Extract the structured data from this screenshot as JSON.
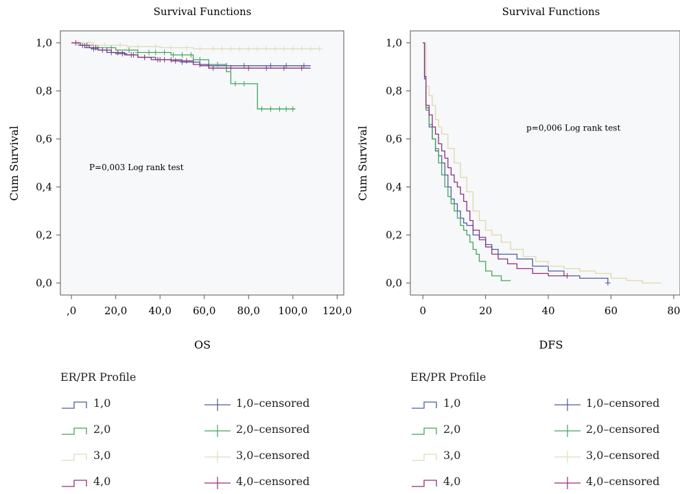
{
  "chart_data": [
    {
      "type": "line",
      "title": "Survival Functions",
      "xlabel": "OS",
      "ylabel": "Cum Survival",
      "xlim": [
        -5,
        123
      ],
      "ylim": [
        -0.05,
        1.05
      ],
      "x_ticks": [
        ",0",
        "20,0",
        "40,0",
        "60,0",
        "80,0",
        "100,0",
        "120,0"
      ],
      "x_tick_values": [
        0,
        20,
        40,
        60,
        80,
        100,
        120
      ],
      "y_ticks": [
        "0,0",
        "0,2",
        "0,4",
        "0,6",
        "0,8",
        "1,0"
      ],
      "y_tick_values": [
        0,
        0.2,
        0.4,
        0.6,
        0.8,
        1.0
      ],
      "annotation": "P=0,003 Log rank test",
      "annotation_at": [
        8,
        0.47
      ],
      "grid": false,
      "series": [
        {
          "name": "1,0",
          "color": "#4a5a9e",
          "x": [
            0,
            3,
            6,
            9,
            12,
            16,
            20,
            25,
            30,
            38,
            50,
            58,
            108
          ],
          "y": [
            1.0,
            0.99,
            0.98,
            0.975,
            0.97,
            0.96,
            0.955,
            0.95,
            0.94,
            0.93,
            0.92,
            0.905,
            0.905
          ],
          "censored_x": [
            5,
            10,
            14,
            18,
            23,
            28,
            33,
            40,
            45,
            50,
            55,
            62,
            70,
            78,
            90,
            97,
            105
          ]
        },
        {
          "name": "2,0",
          "color": "#3fa35a",
          "x": [
            0,
            6,
            12,
            20,
            30,
            45,
            55,
            62,
            70,
            72,
            83,
            84,
            101
          ],
          "y": [
            1.0,
            0.99,
            0.98,
            0.97,
            0.96,
            0.95,
            0.93,
            0.91,
            0.88,
            0.83,
            0.83,
            0.725,
            0.725
          ],
          "censored_x": [
            10,
            18,
            26,
            30,
            35,
            38,
            42,
            46,
            50,
            54,
            58,
            66,
            74,
            78,
            86,
            90,
            94,
            97,
            100
          ]
        },
        {
          "name": "3,0",
          "color": "#dedcba",
          "x": [
            0,
            10,
            25,
            40,
            55,
            113
          ],
          "y": [
            1.0,
            0.99,
            0.985,
            0.98,
            0.975,
            0.975
          ],
          "censored_x": [
            3,
            8,
            15,
            22,
            30,
            38,
            45,
            52,
            58,
            64,
            68,
            72,
            76,
            80,
            84,
            88,
            92,
            96,
            100,
            104,
            108,
            112
          ]
        },
        {
          "name": "4,0",
          "color": "#8e2e7a",
          "x": [
            0,
            4,
            8,
            12,
            18,
            24,
            30,
            36,
            45,
            55,
            62,
            108
          ],
          "y": [
            1.0,
            0.99,
            0.98,
            0.97,
            0.96,
            0.95,
            0.94,
            0.93,
            0.925,
            0.91,
            0.895,
            0.895
          ],
          "censored_x": [
            2,
            7,
            11,
            16,
            21,
            27,
            33,
            39,
            42,
            47,
            52,
            58,
            64,
            72,
            80,
            88,
            96,
            104
          ]
        }
      ]
    },
    {
      "type": "line",
      "title": "Survival Functions",
      "xlabel": "DFS",
      "ylabel": "Cum Survival",
      "xlim": [
        -4,
        82
      ],
      "ylim": [
        -0.05,
        1.05
      ],
      "x_ticks": [
        "0",
        "20",
        "40",
        "60",
        "80"
      ],
      "x_tick_values": [
        0,
        20,
        40,
        60,
        80
      ],
      "y_ticks": [
        "0,0",
        "0,2",
        "0,4",
        "0,6",
        "0,8",
        "1,0"
      ],
      "y_tick_values": [
        0,
        0.2,
        0.4,
        0.6,
        0.8,
        1.0
      ],
      "annotation": "p=0,006 Log rank test",
      "annotation_at": [
        33,
        0.635
      ],
      "grid": false,
      "series": [
        {
          "name": "1,0",
          "color": "#4a5a9e",
          "x": [
            0,
            0.5,
            1,
            2,
            3,
            4,
            5,
            6,
            7,
            8,
            9,
            10,
            11,
            12,
            13,
            14,
            16,
            18,
            20,
            22,
            24,
            30,
            35,
            40,
            45,
            50,
            59
          ],
          "y": [
            1.0,
            0.85,
            0.73,
            0.65,
            0.6,
            0.55,
            0.53,
            0.5,
            0.45,
            0.4,
            0.35,
            0.33,
            0.3,
            0.27,
            0.25,
            0.24,
            0.2,
            0.18,
            0.16,
            0.14,
            0.12,
            0.1,
            0.07,
            0.05,
            0.03,
            0.02,
            0.0
          ],
          "censored_x": [
            59
          ]
        },
        {
          "name": "2,0",
          "color": "#3fa35a",
          "x": [
            0,
            0.5,
            1,
            2,
            3,
            4,
            5,
            6,
            7,
            8,
            9,
            10,
            11,
            12,
            13,
            14,
            15,
            16,
            17,
            18,
            20,
            22,
            25,
            28
          ],
          "y": [
            1.0,
            0.86,
            0.72,
            0.66,
            0.6,
            0.56,
            0.5,
            0.45,
            0.4,
            0.36,
            0.33,
            0.3,
            0.27,
            0.24,
            0.22,
            0.2,
            0.17,
            0.14,
            0.12,
            0.09,
            0.05,
            0.03,
            0.01,
            0.01
          ],
          "censored_x": []
        },
        {
          "name": "3,0",
          "color": "#ded7a8",
          "x": [
            0,
            1,
            2,
            3,
            4,
            5,
            6,
            8,
            10,
            12,
            14,
            16,
            18,
            20,
            22,
            25,
            28,
            32,
            36,
            40,
            45,
            50,
            55,
            60,
            65,
            70,
            76
          ],
          "y": [
            1.0,
            0.82,
            0.78,
            0.74,
            0.68,
            0.65,
            0.62,
            0.56,
            0.5,
            0.44,
            0.38,
            0.3,
            0.26,
            0.22,
            0.2,
            0.17,
            0.14,
            0.11,
            0.09,
            0.07,
            0.06,
            0.05,
            0.04,
            0.02,
            0.01,
            0.0,
            0.0
          ],
          "censored_x": []
        },
        {
          "name": "4,0",
          "color": "#8e2e7a",
          "x": [
            0,
            0.5,
            1,
            2,
            3,
            4,
            5,
            6,
            7,
            8,
            9,
            10,
            11,
            12,
            13,
            14,
            15,
            16,
            18,
            20,
            22,
            24,
            27,
            30,
            35,
            40,
            46
          ],
          "y": [
            1.0,
            0.86,
            0.74,
            0.7,
            0.65,
            0.62,
            0.58,
            0.55,
            0.52,
            0.48,
            0.45,
            0.42,
            0.4,
            0.37,
            0.34,
            0.3,
            0.26,
            0.22,
            0.19,
            0.15,
            0.12,
            0.1,
            0.08,
            0.06,
            0.04,
            0.03,
            0.03
          ],
          "censored_x": [
            46
          ]
        }
      ]
    }
  ],
  "legends": [
    {
      "title": "ER/PR Profile",
      "items": [
        {
          "label": "1,0",
          "kind": "step",
          "color": "#4a5a9e"
        },
        {
          "label": "1,0–censored",
          "kind": "cross",
          "color": "#4a5a9e"
        },
        {
          "label": "2,0",
          "kind": "step",
          "color": "#3fa35a"
        },
        {
          "label": "2,0–censored",
          "kind": "cross",
          "color": "#3fa35a"
        },
        {
          "label": "3,0",
          "kind": "step",
          "color": "#dedcba"
        },
        {
          "label": "3,0–censored",
          "kind": "cross",
          "color": "#dedcba"
        },
        {
          "label": "4,0",
          "kind": "step",
          "color": "#8e2e7a"
        },
        {
          "label": "4,0–censored",
          "kind": "cross",
          "color": "#8e2e7a"
        }
      ]
    },
    {
      "title": "ER/PR Profile",
      "items": [
        {
          "label": "1,0",
          "kind": "step",
          "color": "#4a5a9e"
        },
        {
          "label": "1,0–censored",
          "kind": "cross",
          "color": "#4a5a9e"
        },
        {
          "label": "2,0",
          "kind": "step",
          "color": "#3fa35a"
        },
        {
          "label": "2,0–censored",
          "kind": "cross",
          "color": "#3fa35a"
        },
        {
          "label": "3,0",
          "kind": "step",
          "color": "#dedcba"
        },
        {
          "label": "3,0–censored",
          "kind": "cross",
          "color": "#dedcba"
        },
        {
          "label": "4,0",
          "kind": "step",
          "color": "#8e2e7a"
        },
        {
          "label": "4,0–censored",
          "kind": "cross",
          "color": "#8e2e7a"
        }
      ]
    }
  ]
}
